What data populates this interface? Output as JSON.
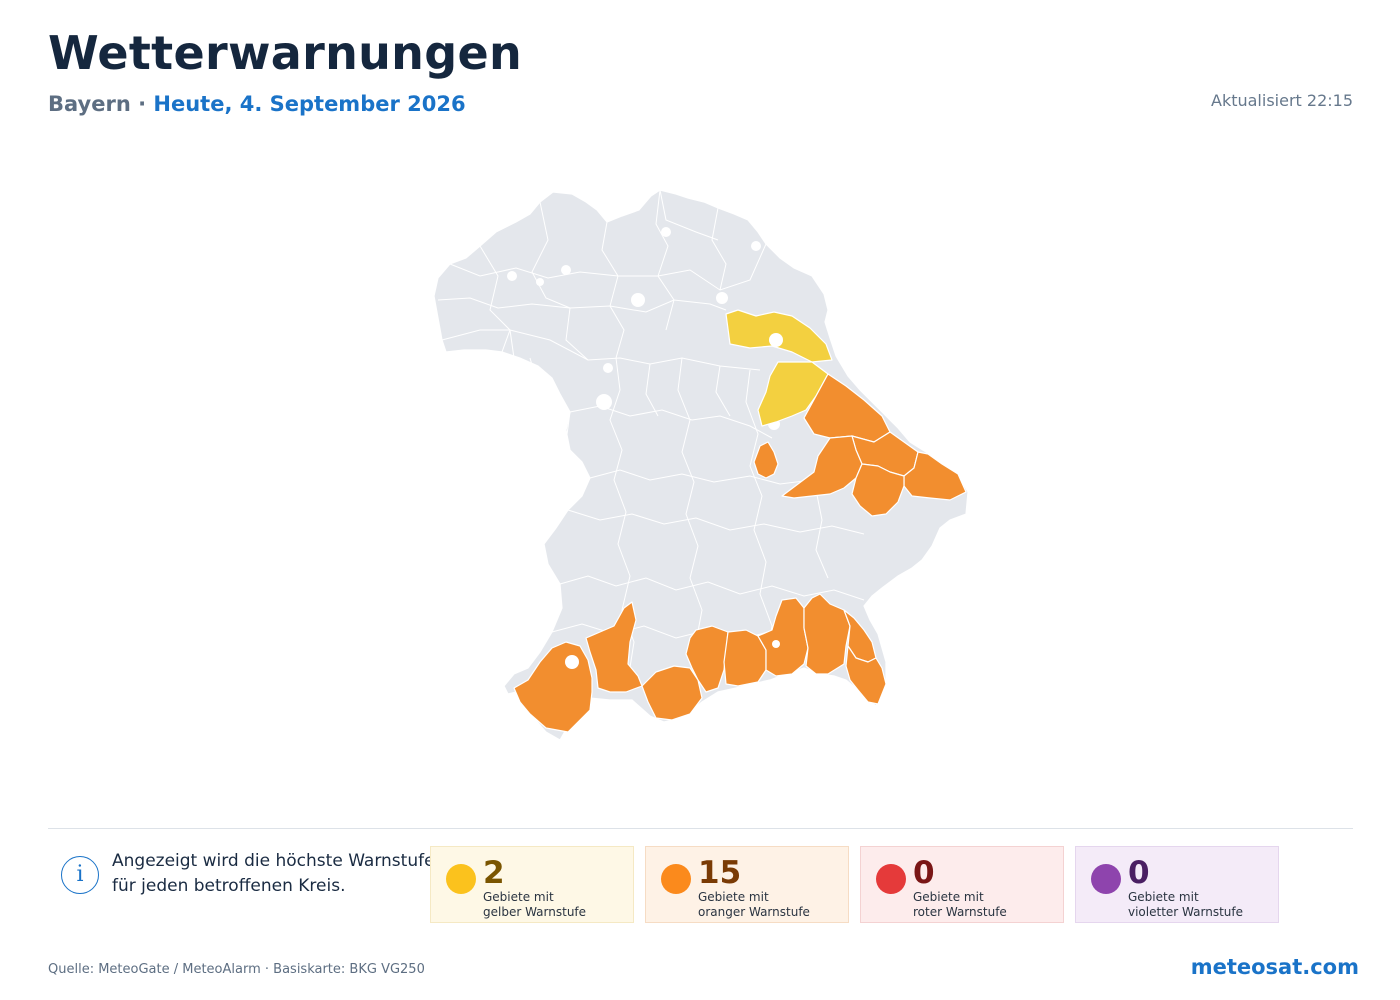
{
  "header": {
    "title": "Wetterwarnungen",
    "region": "Bayern",
    "separator": "·",
    "date": "Heute, 4. September 2026",
    "updated": "Aktualisiert 22:15"
  },
  "map": {
    "colors": {
      "none": "#e4e7ec",
      "yellow": "#f3d040",
      "orange": "#f28e2f",
      "border": "#ffffff"
    },
    "regions": [
      {
        "name": "district-northeast-1",
        "level": "yellow"
      },
      {
        "name": "district-northeast-2",
        "level": "yellow"
      },
      {
        "name": "district-east-1",
        "level": "orange"
      },
      {
        "name": "district-east-2",
        "level": "orange"
      },
      {
        "name": "district-east-3",
        "level": "orange"
      },
      {
        "name": "district-east-4",
        "level": "orange"
      },
      {
        "name": "district-east-5",
        "level": "orange"
      },
      {
        "name": "district-south-1",
        "level": "orange"
      },
      {
        "name": "district-south-2",
        "level": "orange"
      },
      {
        "name": "district-south-3",
        "level": "orange"
      },
      {
        "name": "district-south-4",
        "level": "orange"
      },
      {
        "name": "district-south-5",
        "level": "orange"
      },
      {
        "name": "district-south-6",
        "level": "orange"
      },
      {
        "name": "district-south-7",
        "level": "orange"
      },
      {
        "name": "district-south-8",
        "level": "orange"
      },
      {
        "name": "district-south-9",
        "level": "orange"
      },
      {
        "name": "district-south-10",
        "level": "orange"
      }
    ]
  },
  "info": {
    "icon": "info-icon",
    "text": "Angezeigt wird die höchste Warnstufe\nfür jeden betroffenen Kreis."
  },
  "legend": [
    {
      "key": "yellow",
      "count": "2",
      "label": "Gebiete mit\ngelber Warnstufe",
      "dot": "#fbc21d",
      "bg": "#fef8e6",
      "border": "#f5e9c4",
      "text": "#7a5500"
    },
    {
      "key": "orange",
      "count": "15",
      "label": "Gebiete mit\noranger Warnstufe",
      "dot": "#fb8a1c",
      "bg": "#fef2e6",
      "border": "#f6dcc4",
      "text": "#7a3b05"
    },
    {
      "key": "red",
      "count": "0",
      "label": "Gebiete mit\nroter Warnstufe",
      "dot": "#e53a3a",
      "bg": "#fdecec",
      "border": "#f4d2d2",
      "text": "#7a1616"
    },
    {
      "key": "violet",
      "count": "0",
      "label": "Gebiete mit\nvioletter Warnstufe",
      "dot": "#8e44ad",
      "bg": "#f4ebf8",
      "border": "#e5d6ee",
      "text": "#4a1f63"
    }
  ],
  "footer": {
    "source": "Quelle: MeteoGate / MeteoAlarm · Basiskarte: BKG VG250",
    "brand": "meteosat.com"
  }
}
